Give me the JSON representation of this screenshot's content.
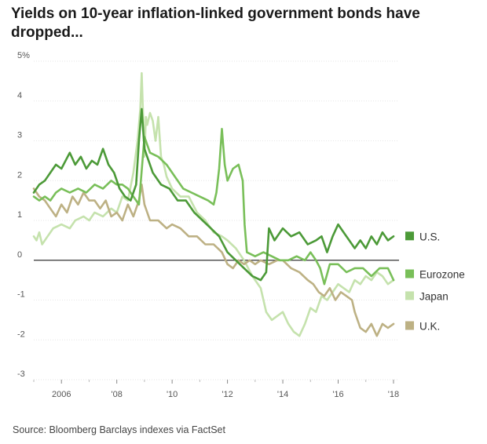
{
  "title": "Yields on 10-year inflation-linked government bonds have dropped...",
  "source": "Source: Bloomberg Barclays indexes via FactSet",
  "chart_data": {
    "type": "line",
    "title": "Yields on 10-year inflation-linked government bonds have dropped...",
    "xlabel": "",
    "ylabel": "",
    "x_range": [
      2005.0,
      2018.2
    ],
    "ylim": [
      -3,
      5
    ],
    "x_ticks": [
      {
        "value": 2006,
        "label": "2006"
      },
      {
        "value": 2008,
        "label": "'08"
      },
      {
        "value": 2010,
        "label": "'10"
      },
      {
        "value": 2012,
        "label": "'12"
      },
      {
        "value": 2014,
        "label": "'14"
      },
      {
        "value": 2016,
        "label": "'16"
      },
      {
        "value": 2018,
        "label": "'18"
      }
    ],
    "y_ticks": [
      {
        "value": 5,
        "label": "5%"
      },
      {
        "value": 4,
        "label": "4"
      },
      {
        "value": 3,
        "label": "3"
      },
      {
        "value": 2,
        "label": "2"
      },
      {
        "value": 1,
        "label": "1"
      },
      {
        "value": 0,
        "label": "0"
      },
      {
        "value": -1,
        "label": "-1"
      },
      {
        "value": -2,
        "label": "-2"
      },
      {
        "value": -3,
        "label": "-3"
      }
    ],
    "grid": true,
    "legend": "right, at line ends",
    "series": [
      {
        "name": "Japan",
        "color": "#c5e2ad",
        "x": [
          2005.0,
          2005.1,
          2005.2,
          2005.3,
          2005.5,
          2005.7,
          2006.0,
          2006.3,
          2006.5,
          2006.8,
          2007.0,
          2007.2,
          2007.5,
          2007.8,
          2008.0,
          2008.2,
          2008.4,
          2008.6,
          2008.75,
          2008.85,
          2008.9,
          2009.0,
          2009.05,
          2009.1,
          2009.2,
          2009.3,
          2009.4,
          2009.5,
          2009.6,
          2009.7,
          2009.8,
          2010.0,
          2010.3,
          2010.6,
          2010.9,
          2011.2,
          2011.5,
          2011.8,
          2012.0,
          2012.3,
          2012.6,
          2012.9,
          2013.2,
          2013.4,
          2013.6,
          2013.8,
          2014.0,
          2014.2,
          2014.4,
          2014.6,
          2014.8,
          2015.0,
          2015.2,
          2015.4,
          2015.6,
          2015.8,
          2016.0,
          2016.2,
          2016.4,
          2016.6,
          2016.8,
          2017.0,
          2017.2,
          2017.4,
          2017.6,
          2017.8,
          2018.0
        ],
        "values": [
          0.6,
          0.5,
          0.7,
          0.4,
          0.6,
          0.8,
          0.9,
          0.8,
          1.0,
          1.1,
          1.0,
          1.2,
          1.1,
          1.3,
          1.2,
          1.6,
          1.5,
          2.2,
          3.0,
          3.8,
          4.7,
          2.6,
          3.6,
          3.4,
          3.7,
          3.5,
          3.0,
          3.6,
          2.6,
          2.4,
          2.1,
          1.8,
          1.6,
          1.6,
          1.2,
          1.0,
          0.7,
          0.6,
          0.5,
          0.3,
          0.0,
          -0.4,
          -0.7,
          -1.3,
          -1.5,
          -1.4,
          -1.3,
          -1.6,
          -1.8,
          -1.9,
          -1.6,
          -1.2,
          -1.3,
          -0.9,
          -1.0,
          -0.8,
          -0.6,
          -0.7,
          -0.8,
          -0.5,
          -0.6,
          -0.4,
          -0.5,
          -0.3,
          -0.4,
          -0.6,
          -0.5
        ]
      },
      {
        "name": "U.K.",
        "color": "#bdb184",
        "x": [
          2005.0,
          2005.2,
          2005.4,
          2005.6,
          2005.8,
          2006.0,
          2006.2,
          2006.4,
          2006.6,
          2006.8,
          2007.0,
          2007.2,
          2007.4,
          2007.6,
          2007.8,
          2008.0,
          2008.2,
          2008.4,
          2008.6,
          2008.8,
          2008.9,
          2009.0,
          2009.2,
          2009.5,
          2009.8,
          2010.0,
          2010.3,
          2010.6,
          2010.9,
          2011.2,
          2011.5,
          2011.8,
          2012.0,
          2012.2,
          2012.4,
          2012.6,
          2012.8,
          2013.0,
          2013.2,
          2013.5,
          2013.8,
          2014.0,
          2014.3,
          2014.6,
          2014.9,
          2015.1,
          2015.3,
          2015.5,
          2015.7,
          2015.9,
          2016.1,
          2016.3,
          2016.5,
          2016.6,
          2016.8,
          2017.0,
          2017.2,
          2017.4,
          2017.6,
          2017.8,
          2018.0
        ],
        "values": [
          1.8,
          1.6,
          1.5,
          1.3,
          1.1,
          1.4,
          1.2,
          1.6,
          1.4,
          1.7,
          1.5,
          1.5,
          1.3,
          1.5,
          1.1,
          1.2,
          1.0,
          1.4,
          1.1,
          1.5,
          1.9,
          1.4,
          1.0,
          1.0,
          0.8,
          0.9,
          0.8,
          0.6,
          0.6,
          0.4,
          0.4,
          0.2,
          -0.1,
          -0.2,
          0.0,
          -0.1,
          0.0,
          -0.1,
          0.0,
          -0.1,
          0.0,
          0.0,
          -0.2,
          -0.3,
          -0.5,
          -0.6,
          -0.8,
          -0.9,
          -0.7,
          -1.0,
          -0.8,
          -0.9,
          -1.0,
          -1.3,
          -1.7,
          -1.8,
          -1.6,
          -1.9,
          -1.6,
          -1.7,
          -1.6
        ]
      },
      {
        "name": "Eurozone",
        "color": "#79bf59",
        "x": [
          2005.0,
          2005.2,
          2005.4,
          2005.6,
          2005.8,
          2006.0,
          2006.3,
          2006.6,
          2006.9,
          2007.2,
          2007.5,
          2007.8,
          2008.0,
          2008.2,
          2008.4,
          2008.6,
          2008.8,
          2009.0,
          2009.2,
          2009.5,
          2009.8,
          2010.1,
          2010.4,
          2010.7,
          2011.0,
          2011.3,
          2011.5,
          2011.6,
          2011.7,
          2011.8,
          2011.9,
          2012.0,
          2012.2,
          2012.4,
          2012.55,
          2012.62,
          2012.7,
          2013.0,
          2013.3,
          2013.6,
          2013.9,
          2014.2,
          2014.5,
          2014.8,
          2015.0,
          2015.1,
          2015.2,
          2015.35,
          2015.5,
          2015.7,
          2016.0,
          2016.3,
          2016.6,
          2016.9,
          2017.2,
          2017.5,
          2017.8,
          2018.0
        ],
        "values": [
          1.6,
          1.5,
          1.6,
          1.5,
          1.7,
          1.8,
          1.7,
          1.8,
          1.7,
          1.9,
          1.8,
          2.0,
          1.9,
          1.9,
          1.8,
          1.6,
          1.4,
          3.1,
          2.7,
          2.6,
          2.4,
          2.1,
          1.8,
          1.7,
          1.6,
          1.5,
          1.4,
          1.7,
          2.3,
          3.3,
          2.4,
          2.0,
          2.3,
          2.4,
          2.0,
          0.9,
          0.2,
          0.1,
          0.2,
          0.1,
          0.0,
          0.0,
          0.1,
          0.0,
          0.2,
          0.1,
          0.0,
          -0.2,
          -0.6,
          -0.1,
          -0.1,
          -0.3,
          -0.2,
          -0.2,
          -0.4,
          -0.2,
          -0.2,
          -0.5
        ]
      },
      {
        "name": "U.S.",
        "color": "#4c9a38",
        "x": [
          2005.0,
          2005.2,
          2005.4,
          2005.6,
          2005.8,
          2006.0,
          2006.3,
          2006.5,
          2006.7,
          2006.9,
          2007.1,
          2007.3,
          2007.5,
          2007.7,
          2007.9,
          2008.1,
          2008.3,
          2008.5,
          2008.7,
          2008.8,
          2008.9,
          2009.0,
          2009.1,
          2009.3,
          2009.6,
          2009.9,
          2010.2,
          2010.5,
          2010.8,
          2011.1,
          2011.4,
          2011.7,
          2012.0,
          2012.3,
          2012.6,
          2012.9,
          2013.2,
          2013.4,
          2013.5,
          2013.7,
          2014.0,
          2014.3,
          2014.6,
          2014.9,
          2015.2,
          2015.4,
          2015.6,
          2015.8,
          2016.0,
          2016.2,
          2016.4,
          2016.6,
          2016.8,
          2017.0,
          2017.2,
          2017.4,
          2017.6,
          2017.8,
          2018.0
        ],
        "values": [
          1.7,
          1.9,
          2.0,
          2.2,
          2.4,
          2.3,
          2.7,
          2.4,
          2.6,
          2.3,
          2.5,
          2.4,
          2.8,
          2.4,
          2.2,
          1.8,
          1.6,
          1.5,
          1.9,
          3.0,
          3.8,
          2.8,
          2.6,
          2.2,
          1.9,
          1.8,
          1.5,
          1.5,
          1.2,
          1.0,
          0.8,
          0.6,
          0.2,
          0.0,
          -0.2,
          -0.4,
          -0.5,
          -0.3,
          0.8,
          0.5,
          0.8,
          0.6,
          0.7,
          0.4,
          0.5,
          0.6,
          0.2,
          0.6,
          0.9,
          0.7,
          0.5,
          0.3,
          0.5,
          0.3,
          0.6,
          0.4,
          0.7,
          0.5,
          0.6
        ]
      }
    ],
    "legend_entries": [
      {
        "name": "U.S.",
        "color": "#4c9a38",
        "y": 0.6
      },
      {
        "name": "Eurozone",
        "color": "#79bf59",
        "y": -0.35
      },
      {
        "name": "Japan",
        "color": "#c5e2ad",
        "y": -0.9
      },
      {
        "name": "U.K.",
        "color": "#bdb184",
        "y": -1.65
      }
    ]
  }
}
